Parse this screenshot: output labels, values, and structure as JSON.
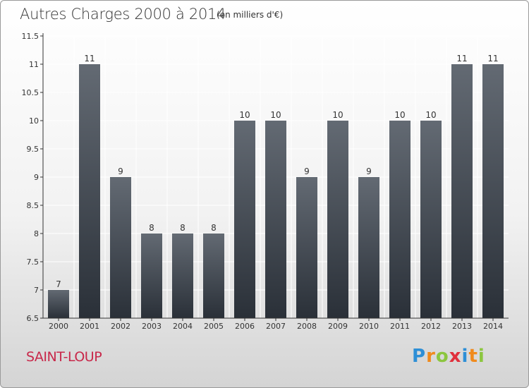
{
  "header": {
    "title": "Autres Charges 2000 à 2014",
    "subtitle": "(en milliers d'€)"
  },
  "footer": {
    "commune": "SAINT-LOUP",
    "logo_letters": [
      {
        "ch": "P",
        "color": "#2e8fd6"
      },
      {
        "ch": "r",
        "color": "#f08a1c"
      },
      {
        "ch": "o",
        "color": "#8cc63f"
      },
      {
        "ch": "x",
        "color": "#e0303c"
      },
      {
        "ch": "i",
        "color": "#2e8fd6"
      },
      {
        "ch": "t",
        "color": "#f08a1c"
      },
      {
        "ch": "i",
        "color": "#8cc63f"
      }
    ]
  },
  "chart_data": {
    "type": "bar",
    "title": "Autres Charges 2000 à 2014",
    "subtitle": "(en milliers d'€)",
    "categories": [
      "2000",
      "2001",
      "2002",
      "2003",
      "2004",
      "2005",
      "2006",
      "2007",
      "2008",
      "2009",
      "2010",
      "2011",
      "2012",
      "2013",
      "2014"
    ],
    "values": [
      7,
      11,
      9,
      8,
      8,
      8,
      10,
      10,
      9,
      10,
      9,
      10,
      10,
      11,
      11
    ],
    "value_labels": [
      "7",
      "11",
      "9",
      "8",
      "8",
      "8",
      "10",
      "10",
      "9",
      "10",
      "9",
      "10",
      "10",
      "11",
      "11"
    ],
    "ylim": [
      6.5,
      11.5
    ],
    "yticks": [
      "6.5",
      "7",
      "7.5",
      "8",
      "8.5",
      "9",
      "9.5",
      "10",
      "10.5",
      "11",
      "11.5"
    ],
    "grid": true,
    "colors": {
      "bar_top": "#636a73",
      "bar_bottom": "#2a3038",
      "grid": "#ffffff",
      "axis": "#333333"
    }
  }
}
